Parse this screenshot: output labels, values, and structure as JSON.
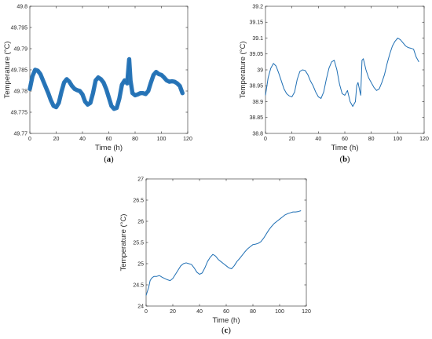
{
  "colors": {
    "line": "#1f6fb4",
    "axis": "#262626",
    "frame": "#262626"
  },
  "chart_data": [
    {
      "type": "line",
      "caption": {
        "open": "(",
        "letter": "a",
        "close": ")"
      },
      "xlabel": "Time (h)",
      "ylabel": "Temperature (°C)",
      "xlim": [
        0,
        120
      ],
      "ylim": [
        49.77,
        49.8
      ],
      "xticks": [
        "0",
        "20",
        "40",
        "60",
        "80",
        "100",
        "120"
      ],
      "yticks": [
        "49.77",
        "49.775",
        "49.78",
        "49.785",
        "49.79",
        "49.795",
        "49.8"
      ],
      "grid": false,
      "series": [
        {
          "x": [
            0,
            2,
            4,
            6,
            8,
            10,
            12,
            14,
            16,
            18,
            20,
            22,
            24,
            26,
            28,
            30,
            32,
            34,
            36,
            38,
            40,
            42,
            44,
            46,
            48,
            50,
            52,
            54,
            56,
            58,
            60,
            62,
            64,
            66,
            68,
            70,
            72,
            74,
            75.5,
            76.5,
            78,
            80,
            82,
            84,
            86,
            88,
            90,
            92,
            94,
            96,
            98,
            100,
            102,
            104,
            106,
            108,
            110,
            112,
            114,
            116
          ],
          "y": [
            49.7805,
            49.7835,
            49.785,
            49.7848,
            49.784,
            49.7825,
            49.781,
            49.7795,
            49.7778,
            49.7765,
            49.7762,
            49.7772,
            49.7798,
            49.782,
            49.7828,
            49.7822,
            49.7812,
            49.7805,
            49.7802,
            49.78,
            49.7792,
            49.7775,
            49.7768,
            49.7772,
            49.7795,
            49.7825,
            49.7832,
            49.7828,
            49.782,
            49.7805,
            49.7785,
            49.7765,
            49.7758,
            49.776,
            49.7782,
            49.7815,
            49.7825,
            49.7818,
            49.7875,
            49.7825,
            49.7795,
            49.779,
            49.7792,
            49.7795,
            49.7795,
            49.7793,
            49.78,
            49.782,
            49.7838,
            49.7845,
            49.784,
            49.7838,
            49.7832,
            49.7825,
            49.7822,
            49.7823,
            49.7822,
            49.7818,
            49.7812,
            49.7795
          ],
          "band": 0.001
        }
      ]
    },
    {
      "type": "line",
      "caption": {
        "open": "(",
        "letter": "b",
        "close": ")"
      },
      "xlabel": "Time (h)",
      "ylabel": "Temperature (°C)",
      "xlim": [
        0,
        120
      ],
      "ylim": [
        38.8,
        39.2
      ],
      "xticks": [
        "0",
        "20",
        "40",
        "60",
        "80",
        "100",
        "120"
      ],
      "yticks": [
        "38.8",
        "38.85",
        "38.9",
        "38.95",
        "39",
        "39.05",
        "39.1",
        "39.15",
        "39.2"
      ],
      "grid": false,
      "series": [
        {
          "x": [
            0,
            2,
            4,
            6,
            8,
            10,
            12,
            14,
            16,
            18,
            20,
            22,
            24,
            26,
            28,
            30,
            32,
            34,
            36,
            38,
            40,
            42,
            44,
            46,
            48,
            50,
            52,
            54,
            56,
            58,
            60,
            62,
            64,
            66,
            68,
            69,
            70,
            72,
            73,
            74,
            76,
            78,
            80,
            82,
            84,
            86,
            88,
            90,
            92,
            94,
            96,
            98,
            100,
            102,
            104,
            106,
            108,
            110,
            112,
            114,
            116
          ],
          "y": [
            38.92,
            38.975,
            39.005,
            39.02,
            39.012,
            38.99,
            38.965,
            38.94,
            38.925,
            38.918,
            38.915,
            38.93,
            38.97,
            38.995,
            39.0,
            38.998,
            38.985,
            38.965,
            38.95,
            38.93,
            38.915,
            38.91,
            38.93,
            38.97,
            39.005,
            39.025,
            39.03,
            39.0,
            38.955,
            38.925,
            38.92,
            38.935,
            38.9,
            38.885,
            38.9,
            38.95,
            38.96,
            38.92,
            39.03,
            39.035,
            39.0,
            38.975,
            38.96,
            38.945,
            38.935,
            38.94,
            38.96,
            38.985,
            39.02,
            39.05,
            39.075,
            39.09,
            39.1,
            39.095,
            39.085,
            39.075,
            39.07,
            39.068,
            39.065,
            39.04,
            39.025
          ],
          "band": 0
        }
      ]
    },
    {
      "type": "line",
      "caption": {
        "open": "(",
        "letter": "c",
        "close": ")"
      },
      "xlabel": "Time (h)",
      "ylabel": "Temperature (°C)",
      "xlim": [
        0,
        120
      ],
      "ylim": [
        24,
        27
      ],
      "xticks": [
        "0",
        "20",
        "40",
        "60",
        "80",
        "100",
        "120"
      ],
      "yticks": [
        "24",
        "24.5",
        "25",
        "25.5",
        "26",
        "26.5",
        "27"
      ],
      "grid": false,
      "series": [
        {
          "x": [
            0,
            1,
            2,
            3,
            4,
            5,
            6,
            8,
            10,
            12,
            14,
            16,
            18,
            20,
            22,
            24,
            26,
            28,
            30,
            32,
            34,
            36,
            38,
            40,
            42,
            44,
            46,
            48,
            50,
            52,
            54,
            56,
            58,
            60,
            62,
            64,
            66,
            68,
            70,
            72,
            74,
            76,
            78,
            80,
            82,
            84,
            86,
            88,
            90,
            92,
            94,
            96,
            98,
            100,
            102,
            104,
            106,
            108,
            110,
            112,
            114,
            116
          ],
          "y": [
            24.25,
            24.35,
            24.45,
            24.6,
            24.65,
            24.68,
            24.7,
            24.7,
            24.72,
            24.68,
            24.65,
            24.62,
            24.6,
            24.65,
            24.75,
            24.85,
            24.95,
            25.0,
            25.02,
            25.0,
            24.98,
            24.9,
            24.8,
            24.75,
            24.78,
            24.9,
            25.05,
            25.15,
            25.22,
            25.18,
            25.1,
            25.05,
            25.0,
            24.95,
            24.9,
            24.88,
            24.95,
            25.05,
            25.12,
            25.2,
            25.28,
            25.35,
            25.4,
            25.45,
            25.46,
            25.48,
            25.52,
            25.6,
            25.7,
            25.8,
            25.88,
            25.95,
            26.0,
            26.05,
            26.1,
            26.15,
            26.18,
            26.2,
            26.22,
            26.22,
            26.23,
            26.25
          ],
          "band": 0
        }
      ]
    }
  ]
}
